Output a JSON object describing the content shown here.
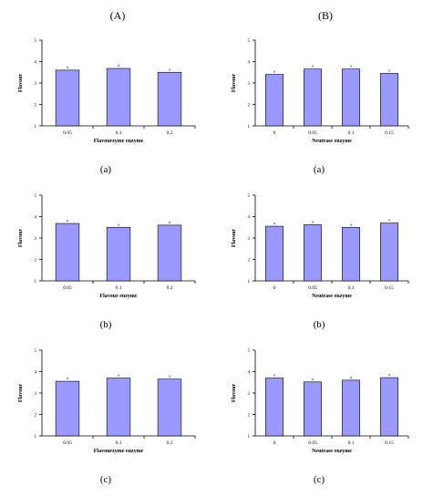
{
  "columns": [
    "(A)",
    "(B)"
  ],
  "chart_data": [
    {
      "id": "A-a",
      "type": "bar",
      "column": "A",
      "sub_label": "(a)",
      "ylabel": "Flavour",
      "xlabel": "Flavourzyme enzyme",
      "ylim": [
        1,
        5
      ],
      "yticks": [
        "1",
        "2",
        "3",
        "4",
        "5"
      ],
      "categories": [
        "0.05",
        "0.1",
        "0.2"
      ],
      "values": [
        3.6,
        3.68,
        3.5
      ],
      "bar_labels": [
        "a",
        "a",
        "a"
      ],
      "bar_color": "#9999ff"
    },
    {
      "id": "B-a",
      "type": "bar",
      "column": "B",
      "sub_label": "(a)",
      "ylabel": "Flavour",
      "xlabel": "Neutrase enzyme",
      "ylim": [
        1,
        5
      ],
      "yticks": [
        "1",
        "2",
        "3",
        "4",
        "5"
      ],
      "categories": [
        "0",
        "0.05",
        "0.1",
        "0.15"
      ],
      "values": [
        3.4,
        3.65,
        3.65,
        3.45
      ],
      "bar_labels": [
        "a",
        "a",
        "a",
        "a"
      ],
      "bar_color": "#9999ff"
    },
    {
      "id": "A-b",
      "type": "bar",
      "column": "A",
      "sub_label": "(b)",
      "ylabel": "Flavour",
      "xlabel": "Flavour enzyme",
      "ylim": [
        1,
        5
      ],
      "yticks": [
        "1",
        "2",
        "3",
        "4",
        "5"
      ],
      "categories": [
        "0.05",
        "0.1",
        "0.2"
      ],
      "values": [
        3.68,
        3.5,
        3.6
      ],
      "bar_labels": [
        "a",
        "a",
        "a"
      ],
      "bar_color": "#9999ff"
    },
    {
      "id": "B-b",
      "type": "bar",
      "column": "B",
      "sub_label": "(b)",
      "ylabel": "Flavour",
      "xlabel": "Neutrase enzyme",
      "ylim": [
        1,
        5
      ],
      "yticks": [
        "1",
        "2",
        "3",
        "4",
        "5"
      ],
      "categories": [
        "0",
        "0.05",
        "0.1",
        "0.15"
      ],
      "values": [
        3.55,
        3.62,
        3.5,
        3.7
      ],
      "bar_labels": [
        "a",
        "a",
        "a",
        "a"
      ],
      "bar_color": "#9999ff"
    },
    {
      "id": "A-c",
      "type": "bar",
      "column": "A",
      "sub_label": "(c)",
      "ylabel": "Flavour",
      "xlabel": "Flavourzyme enzyme",
      "ylim": [
        1,
        5
      ],
      "yticks": [
        "1",
        "2",
        "3",
        "4",
        "5"
      ],
      "categories": [
        "0.05",
        "0.1",
        "0.2"
      ],
      "values": [
        3.55,
        3.7,
        3.65
      ],
      "bar_labels": [
        "a",
        "a",
        "a"
      ],
      "bar_color": "#9999ff"
    },
    {
      "id": "B-c",
      "type": "bar",
      "column": "B",
      "sub_label": "(c)",
      "ylabel": "Flavour",
      "xlabel": "Neutrase enzyme",
      "ylim": [
        1,
        5
      ],
      "yticks": [
        "1",
        "2",
        "3",
        "4",
        "5"
      ],
      "categories": [
        "0",
        "0.05",
        "0.1",
        "0.15"
      ],
      "values": [
        3.7,
        3.52,
        3.6,
        3.72
      ],
      "bar_labels": [
        "a",
        "a",
        "a",
        "a"
      ],
      "bar_color": "#9999ff"
    }
  ]
}
